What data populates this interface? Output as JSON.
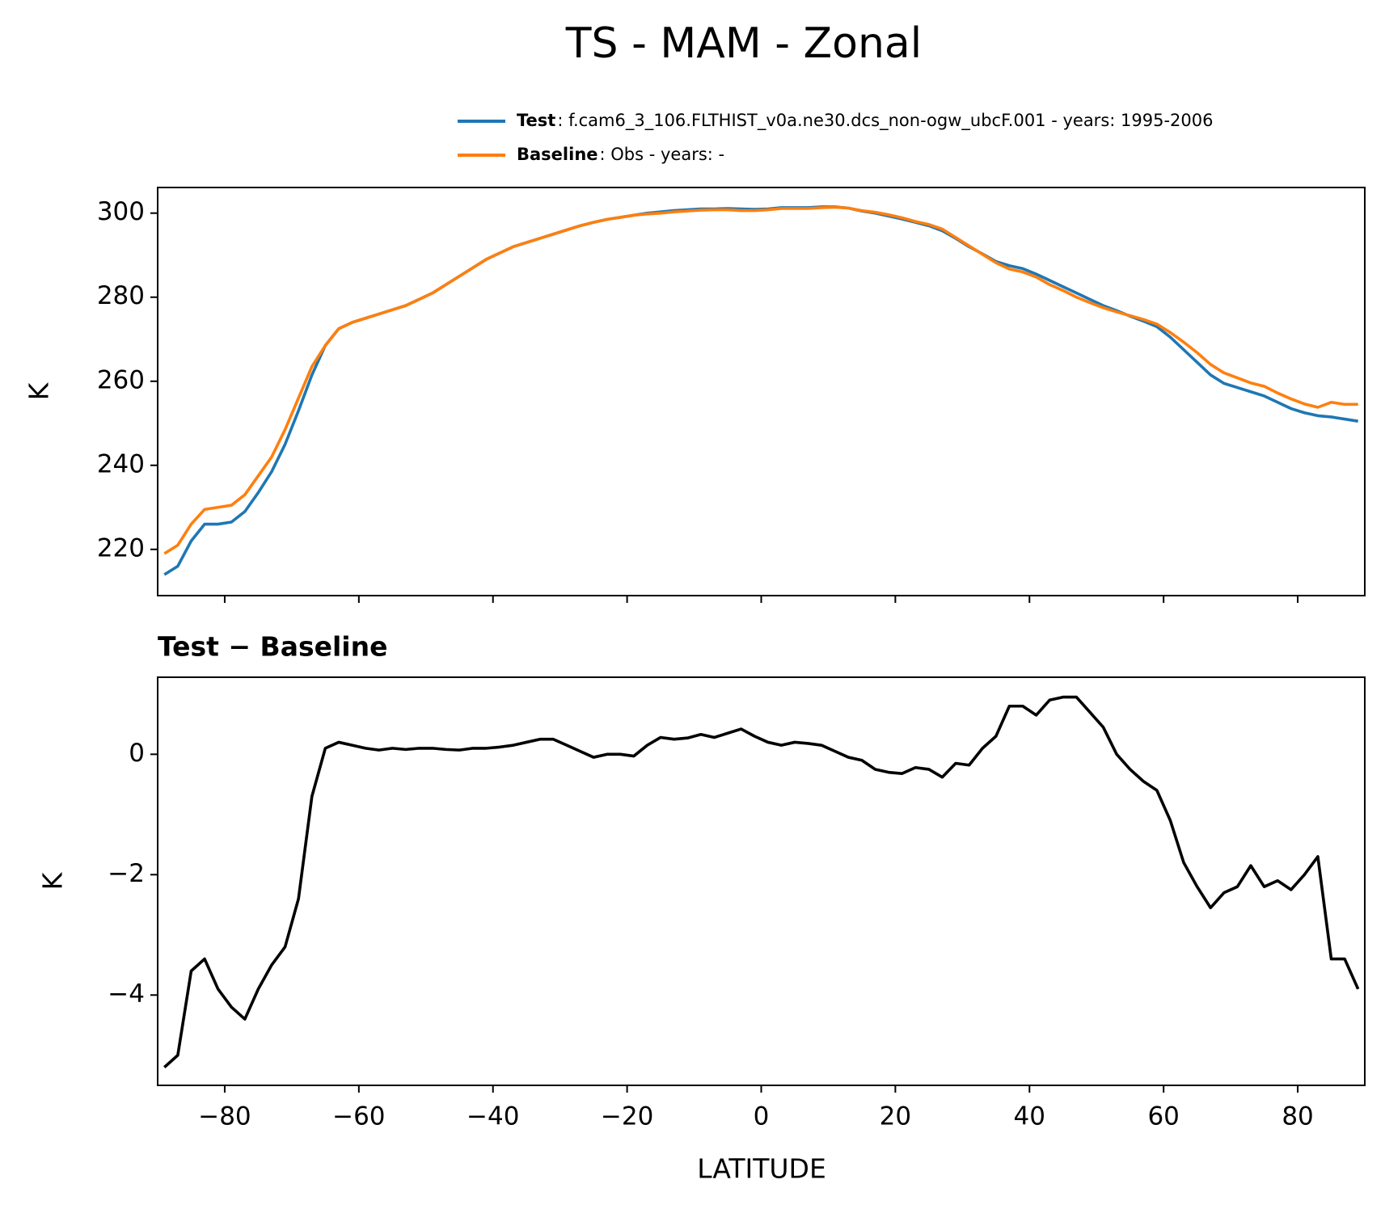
{
  "chart_data": [
    {
      "type": "line",
      "title": "TS - MAM - Zonal",
      "ylabel": "K",
      "x": [
        -89,
        -87,
        -85,
        -83,
        -81,
        -79,
        -77,
        -75,
        -73,
        -71,
        -69,
        -67,
        -65,
        -63,
        -61,
        -59,
        -57,
        -55,
        -53,
        -51,
        -49,
        -47,
        -45,
        -43,
        -41,
        -39,
        -37,
        -35,
        -33,
        -31,
        -29,
        -27,
        -25,
        -23,
        -21,
        -19,
        -17,
        -15,
        -13,
        -11,
        -9,
        -7,
        -5,
        -3,
        -1,
        1,
        3,
        5,
        7,
        9,
        11,
        13,
        15,
        17,
        19,
        21,
        23,
        25,
        27,
        29,
        31,
        33,
        35,
        37,
        39,
        41,
        43,
        45,
        47,
        49,
        51,
        53,
        55,
        57,
        59,
        61,
        63,
        65,
        67,
        69,
        71,
        73,
        75,
        77,
        79,
        81,
        83,
        85,
        87,
        89
      ],
      "series": [
        {
          "name": "Test",
          "description": ": f.cam6_3_106.FLTHIST_v0a.ne30.dcs_non-ogw_ubcF.001 - years: 1995-2006",
          "color": "#1f77b4",
          "values": [
            214,
            216,
            222,
            226,
            226,
            226.5,
            229,
            233.5,
            238.5,
            245,
            253,
            261.5,
            268.5,
            272.5,
            274,
            275,
            276,
            277,
            278,
            279.5,
            281,
            283,
            285,
            287,
            289,
            290.5,
            292,
            293,
            294,
            295,
            296,
            297,
            297.8,
            298.5,
            299,
            299.5,
            300,
            300.3,
            300.6,
            300.8,
            301,
            301,
            301.1,
            301,
            300.9,
            301,
            301.3,
            301.3,
            301.3,
            301.5,
            301.5,
            301.2,
            300.5,
            300,
            299.3,
            298.6,
            297.8,
            297,
            295.8,
            294,
            292,
            290.3,
            288.5,
            287.5,
            286.8,
            285.5,
            284,
            282.5,
            281,
            279.5,
            278,
            276.8,
            275.5,
            274.3,
            273,
            270.5,
            267.5,
            264.5,
            261.5,
            259.5,
            258.5,
            257.5,
            256.5,
            255,
            253.5,
            252.5,
            251.8,
            251.5,
            251,
            250.5
          ]
        },
        {
          "name": "Baseline",
          "description": ": Obs - years: -",
          "color": "#ff7f0e",
          "values": [
            219,
            221,
            226,
            229.5,
            230,
            230.5,
            233,
            237.5,
            242,
            248.5,
            256,
            263.5,
            268.5,
            272.5,
            274,
            275,
            276,
            277,
            278,
            279.5,
            281,
            283,
            285,
            287,
            289,
            290.5,
            292,
            293,
            294,
            295,
            296,
            297,
            297.8,
            298.5,
            299,
            299.5,
            299.8,
            300,
            300.3,
            300.5,
            300.7,
            300.8,
            300.8,
            300.6,
            300.6,
            300.8,
            301.1,
            301.1,
            301.1,
            301.3,
            301.4,
            301.2,
            300.6,
            300.2,
            299.6,
            298.9,
            298,
            297.3,
            296.2,
            294.2,
            292.2,
            290.2,
            288.2,
            286.7,
            286,
            284.8,
            283,
            281.6,
            280,
            278.7,
            277.5,
            276.5,
            275.6,
            274.7,
            273.6,
            271.6,
            269.3,
            266.8,
            264,
            262,
            260.8,
            259.6,
            258.8,
            257.2,
            255.8,
            254.6,
            253.8,
            255,
            254.5,
            254.5
          ]
        }
      ],
      "xlim": [
        -90,
        90
      ],
      "ylim": [
        209,
        306.1
      ],
      "yticks": [
        220,
        240,
        260,
        280,
        300
      ]
    },
    {
      "type": "line",
      "title": "Test − Baseline",
      "ylabel": "K",
      "xlabel": "LATITUDE",
      "x": [
        -89,
        -87,
        -85,
        -83,
        -81,
        -79,
        -77,
        -75,
        -73,
        -71,
        -69,
        -67,
        -65,
        -63,
        -61,
        -59,
        -57,
        -55,
        -53,
        -51,
        -49,
        -47,
        -45,
        -43,
        -41,
        -39,
        -37,
        -35,
        -33,
        -31,
        -29,
        -27,
        -25,
        -23,
        -21,
        -19,
        -17,
        -15,
        -13,
        -11,
        -9,
        -7,
        -5,
        -3,
        -1,
        1,
        3,
        5,
        7,
        9,
        11,
        13,
        15,
        17,
        19,
        21,
        23,
        25,
        27,
        29,
        31,
        33,
        35,
        37,
        39,
        41,
        43,
        45,
        47,
        49,
        51,
        53,
        55,
        57,
        59,
        61,
        63,
        65,
        67,
        69,
        71,
        73,
        75,
        77,
        79,
        81,
        83,
        85,
        87,
        89
      ],
      "series": [
        {
          "color": "#000000",
          "values": [
            -5.2,
            -5.0,
            -3.6,
            -3.4,
            -3.9,
            -4.2,
            -4.4,
            -3.9,
            -3.5,
            -3.2,
            -2.4,
            -0.7,
            0.1,
            0.2,
            0.15,
            0.1,
            0.07,
            0.1,
            0.08,
            0.1,
            0.1,
            0.08,
            0.07,
            0.1,
            0.1,
            0.12,
            0.15,
            0.2,
            0.25,
            0.25,
            0.15,
            0.05,
            -0.05,
            0.0,
            0.0,
            -0.03,
            0.15,
            0.28,
            0.25,
            0.27,
            0.33,
            0.28,
            0.35,
            0.42,
            0.3,
            0.2,
            0.15,
            0.2,
            0.18,
            0.15,
            0.05,
            -0.05,
            -0.1,
            -0.25,
            -0.3,
            -0.32,
            -0.22,
            -0.25,
            -0.38,
            -0.15,
            -0.18,
            0.1,
            0.3,
            0.8,
            0.8,
            0.65,
            0.9,
            0.95,
            0.95,
            0.7,
            0.45,
            0.0,
            -0.25,
            -0.45,
            -0.6,
            -1.1,
            -1.8,
            -2.2,
            -2.55,
            -2.3,
            -2.2,
            -1.85,
            -2.2,
            -2.1,
            -2.25,
            -2.0,
            -1.7,
            -3.4,
            -3.4,
            -3.9
          ]
        }
      ],
      "xlim": [
        -90,
        90
      ],
      "ylim": [
        -5.5,
        1.28
      ],
      "xticks": [
        {
          "value": -80,
          "label": "−80"
        },
        {
          "value": -60,
          "label": "−60"
        },
        {
          "value": -40,
          "label": "−40"
        },
        {
          "value": -20,
          "label": "−20"
        },
        0,
        20,
        40,
        60,
        80
      ],
      "yticks": [
        {
          "value": -4,
          "label": "−4"
        },
        {
          "value": -2,
          "label": "−2"
        },
        0
      ]
    }
  ]
}
